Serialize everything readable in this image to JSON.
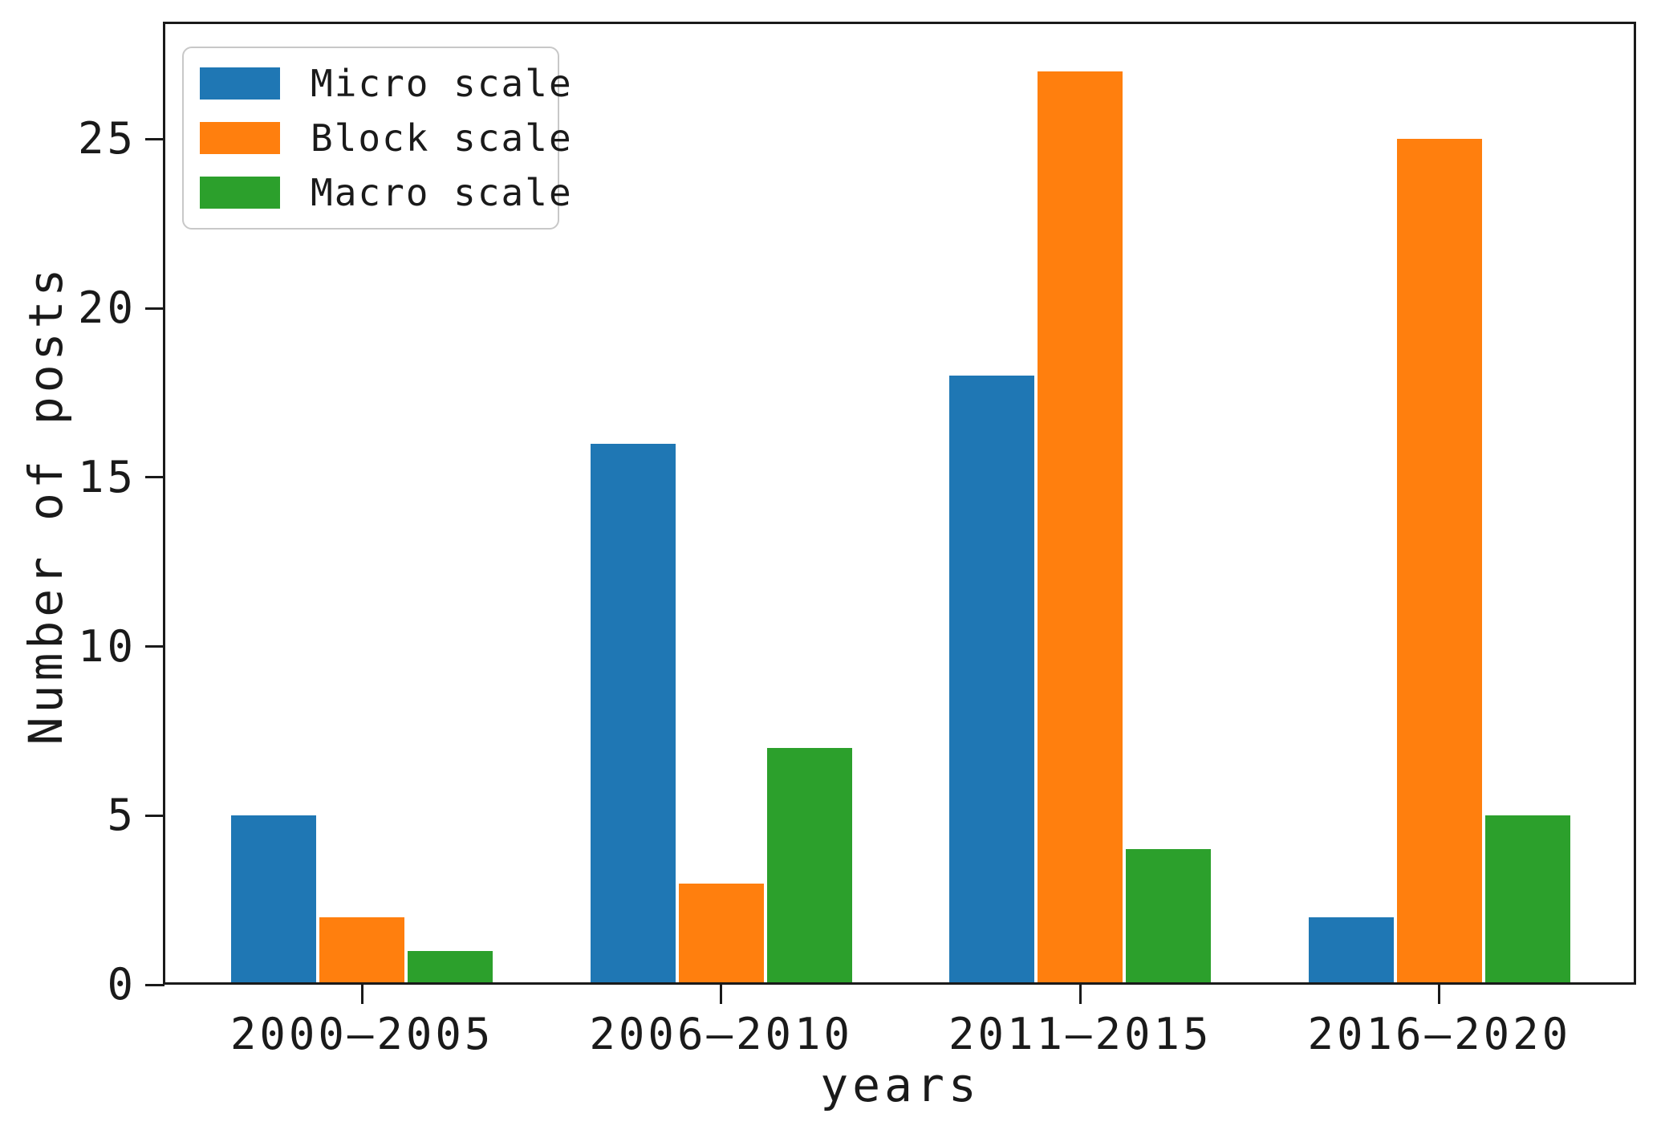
{
  "chart_data": {
    "type": "bar",
    "title": "",
    "xlabel": "years",
    "ylabel": "Number of posts",
    "categories": [
      "2000—2005",
      "2006—2010",
      "2011—2015",
      "2016—2020"
    ],
    "series": [
      {
        "name": "Micro scale",
        "color": "#1f77b4",
        "values": [
          5,
          16,
          18,
          2
        ]
      },
      {
        "name": "Block scale",
        "color": "#ff7f0e",
        "values": [
          2,
          3,
          27,
          25
        ]
      },
      {
        "name": "Macro scale",
        "color": "#2ca02c",
        "values": [
          1,
          7,
          4,
          5
        ]
      }
    ],
    "yticks": [
      0,
      5,
      10,
      15,
      20,
      25
    ],
    "ylim": [
      0,
      28.4
    ],
    "grid": false,
    "axis_color": "#1a1a1a",
    "legend": {
      "position": "upper left"
    }
  }
}
